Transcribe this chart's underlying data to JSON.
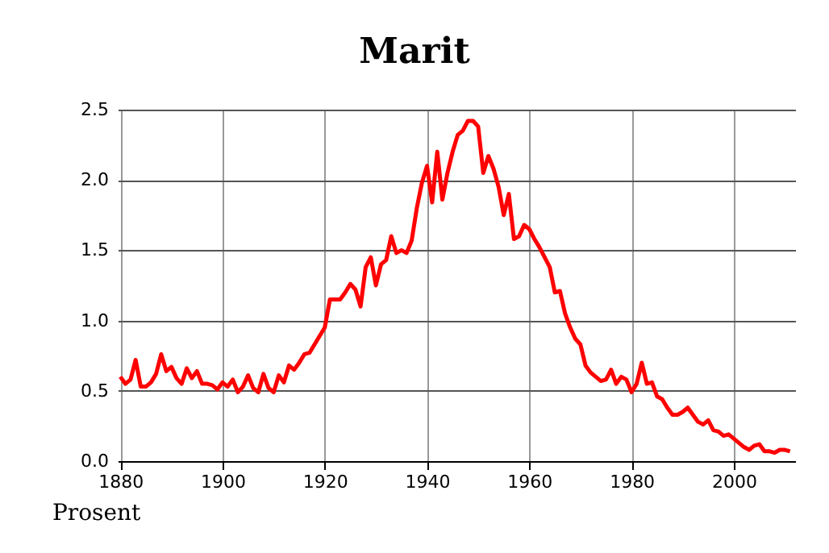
{
  "chart_data": {
    "type": "line",
    "title": "Marit",
    "ylabel": "Prosent",
    "x": [
      1880,
      1881,
      1882,
      1883,
      1884,
      1885,
      1886,
      1887,
      1888,
      1889,
      1890,
      1891,
      1892,
      1893,
      1894,
      1895,
      1896,
      1897,
      1898,
      1899,
      1900,
      1901,
      1902,
      1903,
      1904,
      1905,
      1906,
      1907,
      1908,
      1909,
      1910,
      1911,
      1912,
      1913,
      1914,
      1915,
      1916,
      1917,
      1918,
      1919,
      1920,
      1921,
      1922,
      1923,
      1924,
      1925,
      1926,
      1927,
      1928,
      1929,
      1930,
      1931,
      1932,
      1933,
      1934,
      1935,
      1936,
      1937,
      1938,
      1939,
      1940,
      1941,
      1942,
      1943,
      1944,
      1945,
      1946,
      1947,
      1948,
      1949,
      1950,
      1951,
      1952,
      1953,
      1954,
      1955,
      1956,
      1957,
      1958,
      1959,
      1960,
      1961,
      1962,
      1963,
      1964,
      1965,
      1966,
      1967,
      1968,
      1969,
      1970,
      1971,
      1972,
      1973,
      1974,
      1975,
      1976,
      1977,
      1978,
      1979,
      1980,
      1981,
      1982,
      1983,
      1984,
      1985,
      1986,
      1987,
      1988,
      1989,
      1990,
      1991,
      1992,
      1993,
      1994,
      1995,
      1996,
      1997,
      1998,
      1999,
      2000,
      2001,
      2002,
      2003,
      2004,
      2005,
      2006,
      2007,
      2008,
      2009,
      2010,
      2011
    ],
    "series": [
      {
        "color": "#ff0000",
        "values": [
          0.6,
          0.55,
          0.58,
          0.72,
          0.53,
          0.53,
          0.56,
          0.62,
          0.76,
          0.64,
          0.67,
          0.59,
          0.55,
          0.66,
          0.59,
          0.64,
          0.55,
          0.55,
          0.54,
          0.51,
          0.56,
          0.53,
          0.58,
          0.49,
          0.53,
          0.61,
          0.52,
          0.49,
          0.62,
          0.52,
          0.49,
          0.61,
          0.56,
          0.68,
          0.65,
          0.7,
          0.76,
          0.77,
          0.83,
          0.89,
          0.95,
          1.15,
          1.15,
          1.15,
          1.2,
          1.26,
          1.22,
          1.1,
          1.38,
          1.45,
          1.25,
          1.4,
          1.43,
          1.6,
          1.48,
          1.5,
          1.48,
          1.57,
          1.8,
          1.98,
          2.1,
          1.84,
          2.2,
          1.86,
          2.05,
          2.2,
          2.32,
          2.35,
          2.42,
          2.42,
          2.38,
          2.05,
          2.17,
          2.08,
          1.95,
          1.75,
          1.9,
          1.58,
          1.6,
          1.68,
          1.65,
          1.58,
          1.52,
          1.45,
          1.38,
          1.2,
          1.21,
          1.05,
          0.95,
          0.87,
          0.83,
          0.68,
          0.63,
          0.6,
          0.57,
          0.58,
          0.65,
          0.55,
          0.6,
          0.58,
          0.49,
          0.55,
          0.7,
          0.55,
          0.56,
          0.46,
          0.44,
          0.38,
          0.33,
          0.33,
          0.35,
          0.38,
          0.33,
          0.28,
          0.26,
          0.29,
          0.22,
          0.21,
          0.18,
          0.19,
          0.16,
          0.13,
          0.1,
          0.08,
          0.11,
          0.12,
          0.07,
          0.07,
          0.06,
          0.08,
          0.08,
          0.07
        ]
      }
    ],
    "xlim": [
      1879.5,
      2012
    ],
    "xticks": [
      1880,
      1900,
      1920,
      1940,
      1960,
      1980,
      2000
    ],
    "ylim": [
      0,
      2.5
    ],
    "yticks": [
      {
        "value": 0,
        "label": "0.0"
      },
      {
        "value": 0.5,
        "label": "0.5"
      },
      {
        "value": 1,
        "label": "1.0"
      },
      {
        "value": 1.5,
        "label": "1.5"
      },
      {
        "value": 2,
        "label": "2.0"
      },
      {
        "value": 2.5,
        "label": "2.5"
      }
    ],
    "grid": true,
    "marker": "none",
    "line_style": "solid"
  }
}
